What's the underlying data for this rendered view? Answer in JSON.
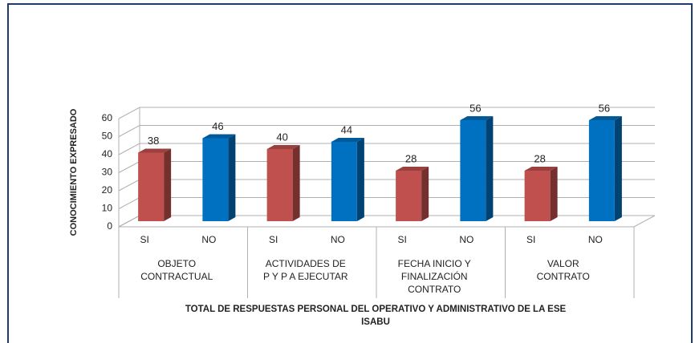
{
  "chart_data": {
    "type": "bar3d",
    "ylabel": "CONOCIMIENTO EXPRESADO",
    "xlabel": [
      "TOTAL DE RESPUESTAS PERSONAL DEL OPERATIVO Y ADMINISTRATIVO DE LA ESE",
      "ISABU"
    ],
    "categories": [
      "SI",
      "NO",
      "SI",
      "NO",
      "SI",
      "NO",
      "SI",
      "NO"
    ],
    "groups": [
      [
        "OBJETO",
        "CONTRACTUAL"
      ],
      [
        "ACTIVIDADES DE",
        "P Y P A EJECUTAR"
      ],
      [
        "FECHA INICIO Y",
        "FINALIZACIÓN",
        "CONTRATO"
      ],
      [
        "VALOR",
        "CONTRATO"
      ]
    ],
    "values": [
      38,
      46,
      40,
      44,
      28,
      56,
      28,
      56
    ],
    "colors": [
      "#c0504d",
      "#0070c0",
      "#c0504d",
      "#0070c0",
      "#c0504d",
      "#0070c0",
      "#c0504d",
      "#0070c0"
    ],
    "ylim": [
      0,
      60
    ],
    "yticks": [
      0,
      10,
      20,
      30,
      40,
      50,
      60
    ],
    "grid": true
  }
}
